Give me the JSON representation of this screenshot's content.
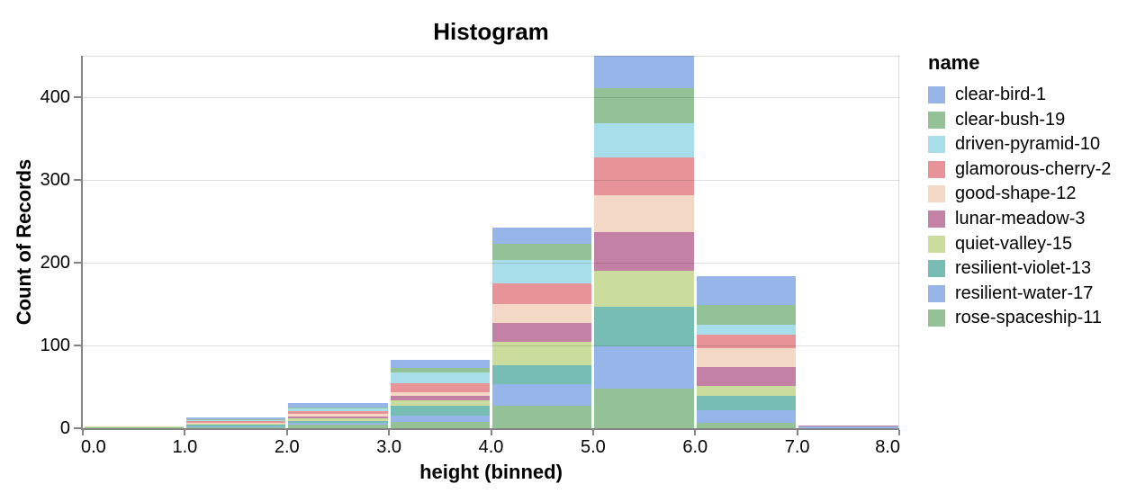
{
  "header": {
    "title": "Histogram"
  },
  "chart_data": {
    "type": "bar",
    "subtype": "stacked-histogram",
    "title": "Histogram",
    "xlabel": "height (binned)",
    "ylabel": "Count of Records",
    "legend_title": "name",
    "legend_position": "right",
    "grid": true,
    "xlim": [
      0,
      8
    ],
    "ylim": [
      0,
      450
    ],
    "x_tick_labels": [
      "0.0",
      "1.0",
      "2.0",
      "3.0",
      "4.0",
      "5.0",
      "6.0",
      "7.0",
      "8.0"
    ],
    "y_tick_values": [
      0,
      100,
      200,
      300,
      400
    ],
    "bins": [
      [
        0,
        1
      ],
      [
        1,
        2
      ],
      [
        2,
        3
      ],
      [
        3,
        4
      ],
      [
        4,
        5
      ],
      [
        5,
        6
      ],
      [
        6,
        7
      ],
      [
        7,
        8
      ]
    ],
    "bin_totals": [
      2,
      13,
      30,
      83,
      242,
      450,
      184,
      3
    ],
    "stack_order": "first-series-on-top",
    "series": [
      {
        "name": "clear-bird-1",
        "color": "#96b5e8",
        "values": [
          0,
          2,
          5,
          10,
          19,
          39,
          35,
          0
        ]
      },
      {
        "name": "clear-bush-19",
        "color": "#92c295",
        "values": [
          0,
          1,
          1,
          6,
          20,
          42,
          24,
          0
        ]
      },
      {
        "name": "driven-pyramid-10",
        "color": "#a8dee9",
        "values": [
          0,
          1,
          3,
          13,
          28,
          42,
          12,
          0
        ]
      },
      {
        "name": "glamorous-cherry-2",
        "color": "#e89398",
        "values": [
          0,
          2,
          4,
          10,
          25,
          45,
          16,
          0
        ]
      },
      {
        "name": "good-shape-12",
        "color": "#f3d8c5",
        "values": [
          0,
          1,
          3,
          5,
          23,
          45,
          23,
          0
        ]
      },
      {
        "name": "lunar-meadow-3",
        "color": "#c481a6",
        "values": [
          0,
          1,
          2,
          5,
          23,
          47,
          23,
          1
        ]
      },
      {
        "name": "quiet-valley-15",
        "color": "#cadd9d",
        "values": [
          1,
          1,
          3,
          7,
          28,
          43,
          12,
          0
        ]
      },
      {
        "name": "resilient-violet-13",
        "color": "#78bdb4",
        "values": [
          0,
          2,
          2,
          12,
          23,
          48,
          17,
          0
        ]
      },
      {
        "name": "resilient-water-17",
        "color": "#96b5e8",
        "values": [
          0,
          1,
          3,
          7,
          26,
          51,
          16,
          2
        ]
      },
      {
        "name": "rose-spaceship-11",
        "color": "#92c295",
        "values": [
          1,
          1,
          4,
          8,
          27,
          48,
          6,
          0
        ]
      }
    ],
    "colors": {
      "axis": "#848484",
      "grid": "#dddddd",
      "text": "#000000",
      "background": "#ffffff"
    }
  }
}
